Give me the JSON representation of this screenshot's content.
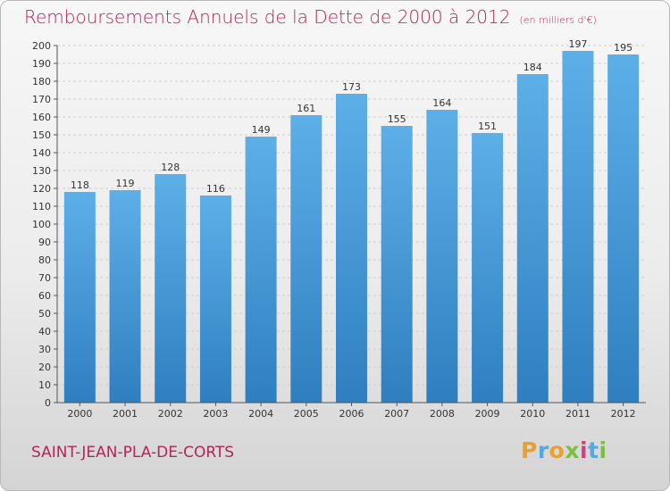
{
  "header": {
    "title": "Remboursements Annuels de la Dette de 2000 à 2012",
    "unit": "(en milliers d'€)"
  },
  "footer": {
    "city": "SAINT-JEAN-PLA-DE-CORTS",
    "brand": "Proxiti",
    "brand_letters": [
      "P",
      "r",
      "o",
      "x",
      "i",
      "t",
      "i"
    ]
  },
  "colors": {
    "title": "#b3255a",
    "bar_top": "#5dafe8",
    "bar_bottom": "#2f7fc0",
    "axis": "#555555",
    "grid": "#cfcfcf"
  },
  "chart_data": {
    "type": "bar",
    "title": "Remboursements Annuels de la Dette de 2000 à 2012",
    "xlabel": "",
    "ylabel": "",
    "categories": [
      "2000",
      "2001",
      "2002",
      "2003",
      "2004",
      "2005",
      "2006",
      "2007",
      "2008",
      "2009",
      "2010",
      "2011",
      "2012"
    ],
    "values": [
      118,
      119,
      128,
      116,
      149,
      161,
      173,
      155,
      164,
      151,
      184,
      197,
      195
    ],
    "ylim": [
      0,
      200
    ],
    "ytick_step": 10,
    "grid": true,
    "data_labels": true
  }
}
